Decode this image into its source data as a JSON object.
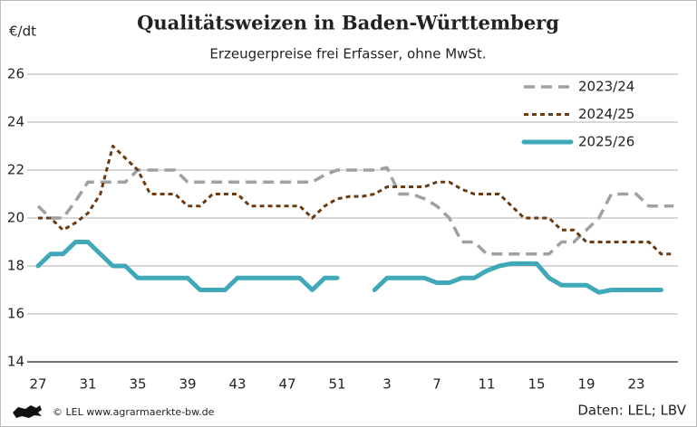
{
  "chart_data": {
    "type": "line",
    "title": "Qualitätsweizen in Baden-Württemberg",
    "subtitle": "Erzeugerpreise frei Erfasser, ohne MwSt.",
    "y_label": "€/dt",
    "source": "Daten: LEL; LBV",
    "credit": "© LEL www.agrarmaerkte-bw.de",
    "categories": [
      "27",
      null,
      null,
      null,
      "31",
      null,
      null,
      null,
      "35",
      null,
      null,
      null,
      "39",
      null,
      null,
      null,
      "43",
      null,
      null,
      null,
      "47",
      null,
      null,
      null,
      "51",
      null,
      null,
      null,
      "3",
      null,
      null,
      null,
      "7",
      null,
      null,
      null,
      "11",
      null,
      null,
      null,
      "15",
      null,
      null,
      null,
      "19",
      null,
      null,
      null,
      "23",
      null,
      null,
      null
    ],
    "ylim": [
      14,
      26
    ],
    "yticks": [
      14,
      16,
      18,
      20,
      22,
      24,
      26
    ],
    "grid": true,
    "legend": "top-right",
    "series": [
      {
        "name": "2023/24",
        "color": "#a0a0a0",
        "style": "dashed",
        "values": [
          20.5,
          20,
          20,
          20.7,
          21.5,
          21.5,
          21.5,
          21.5,
          22,
          22,
          22,
          22,
          21.5,
          21.5,
          21.5,
          21.5,
          21.5,
          21.5,
          21.5,
          21.5,
          21.5,
          21.5,
          21.5,
          21.8,
          22,
          22,
          22,
          22,
          22.1,
          21,
          21,
          20.8,
          20.5,
          20,
          19,
          19,
          18.5,
          18.5,
          18.5,
          18.5,
          18.5,
          18.5,
          19,
          19,
          19.5,
          20,
          21,
          21,
          21,
          20.5,
          20.5,
          20.5
        ]
      },
      {
        "name": "2024/25",
        "color": "#6b3a10",
        "style": "dotted",
        "values": [
          20,
          20,
          19.5,
          19.8,
          20.2,
          21,
          23,
          22.5,
          22,
          21,
          21,
          21,
          20.5,
          20.5,
          21,
          21,
          21,
          20.5,
          20.5,
          20.5,
          20.5,
          20.5,
          20,
          20.5,
          20.8,
          20.9,
          20.9,
          21,
          21.3,
          21.3,
          21.3,
          21.3,
          21.5,
          21.5,
          21.2,
          21,
          21,
          21,
          20.5,
          20,
          20,
          20,
          19.5,
          19.5,
          19,
          19,
          19,
          19,
          19,
          19,
          18.5,
          18.5
        ]
      },
      {
        "name": "2025/26",
        "color": "#3fa8b9",
        "style": "solid",
        "values": [
          18,
          18.5,
          18.5,
          19,
          19,
          18.5,
          18,
          18,
          17.5,
          17.5,
          17.5,
          17.5,
          17.5,
          17,
          17,
          17,
          17.5,
          17.5,
          17.5,
          17.5,
          17.5,
          17.5,
          17,
          17.5,
          17.5,
          null,
          null,
          17,
          17.5,
          17.5,
          17.5,
          17.5,
          17.3,
          17.3,
          17.5,
          17.5,
          17.8,
          18,
          18.1,
          18.1,
          18.1,
          17.5,
          17.2,
          17.2,
          17.2,
          16.9,
          17,
          17,
          17,
          17,
          17,
          null
        ]
      }
    ]
  }
}
